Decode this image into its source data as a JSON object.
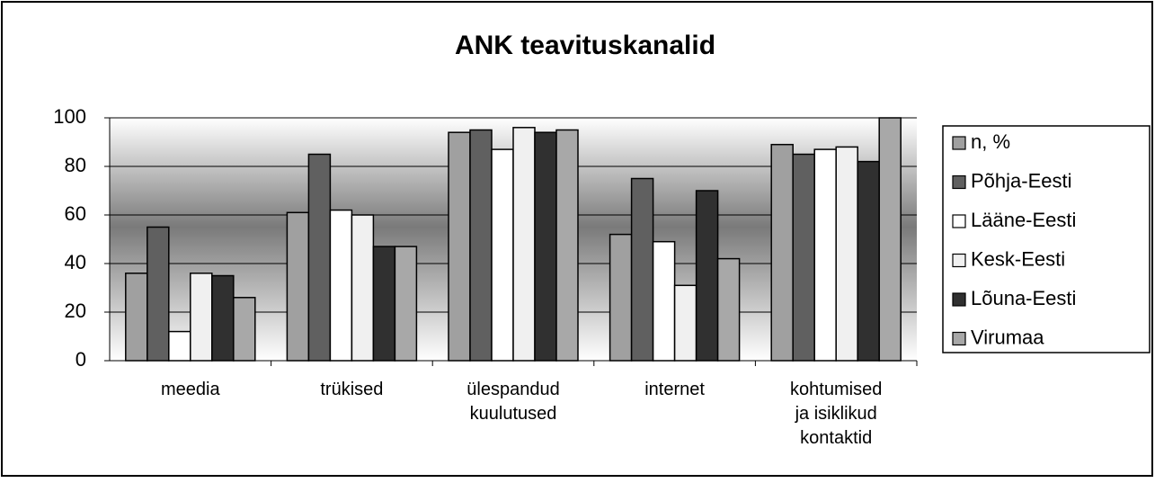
{
  "chart_data": {
    "type": "bar",
    "title": "ANK teavituskanalid",
    "categories": [
      "meedia",
      "trükised",
      "ülespandud\nkuulutused",
      "internet",
      "kohtumised\nja isiklikud\nkontaktid"
    ],
    "series": [
      {
        "name": "n, %",
        "color": "#a0a0a0",
        "values": [
          36,
          61,
          94,
          52,
          89
        ]
      },
      {
        "name": "Põhja-Eesti",
        "color": "#606060",
        "values": [
          55,
          85,
          95,
          75,
          85
        ]
      },
      {
        "name": "Lääne-Eesti",
        "color": "#ffffff",
        "values": [
          12,
          62,
          87,
          49,
          87
        ]
      },
      {
        "name": "Kesk-Eesti",
        "color": "#f0f0f0",
        "values": [
          36,
          60,
          96,
          31,
          88
        ]
      },
      {
        "name": "Lõuna-Eesti",
        "color": "#303030",
        "values": [
          35,
          47,
          94,
          70,
          82
        ]
      },
      {
        "name": "Virumaa",
        "color": "#a8a8a8",
        "values": [
          26,
          47,
          95,
          42,
          100
        ]
      }
    ],
    "ylim": [
      0,
      100
    ],
    "yticks": [
      0,
      20,
      40,
      60,
      80,
      100
    ],
    "grid": true,
    "legend": "right"
  }
}
